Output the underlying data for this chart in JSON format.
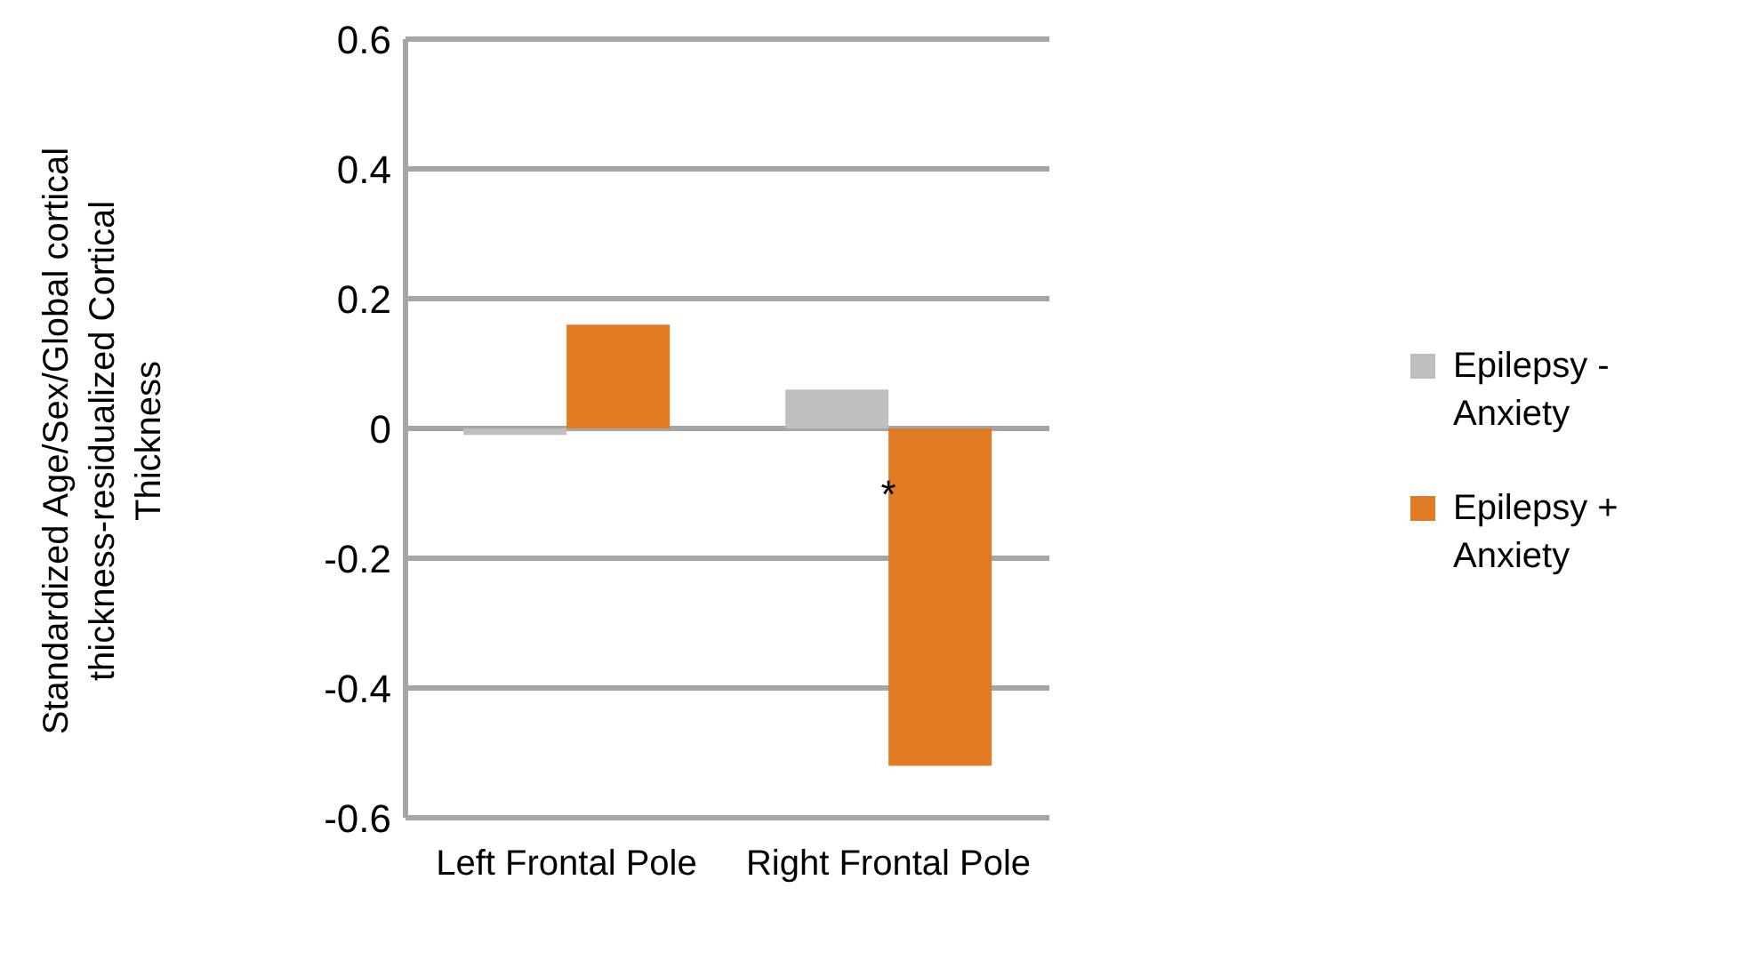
{
  "chart_data": {
    "type": "bar",
    "ylabel": "Standardized Age/Sex/Global cortical thickness-residualized Cortical Thickness",
    "categories": [
      "Left Frontal Pole",
      "Right Frontal Pole"
    ],
    "series": [
      {
        "name": "Epilepsy - Anxiety",
        "color": "#bfbfbf",
        "values": [
          -0.01,
          0.06
        ]
      },
      {
        "name": "Epilepsy + Anxiety",
        "color": "#e07b24",
        "values": [
          0.16,
          -0.52
        ]
      }
    ],
    "ylim": [
      -0.6,
      0.6
    ],
    "yticks": [
      -0.6,
      -0.4,
      -0.2,
      0,
      0.2,
      0.4,
      0.6
    ],
    "grid": "y",
    "legend": "right",
    "annotations": [
      {
        "text": "*",
        "x": "Right Frontal Pole",
        "y": -0.1
      }
    ]
  }
}
